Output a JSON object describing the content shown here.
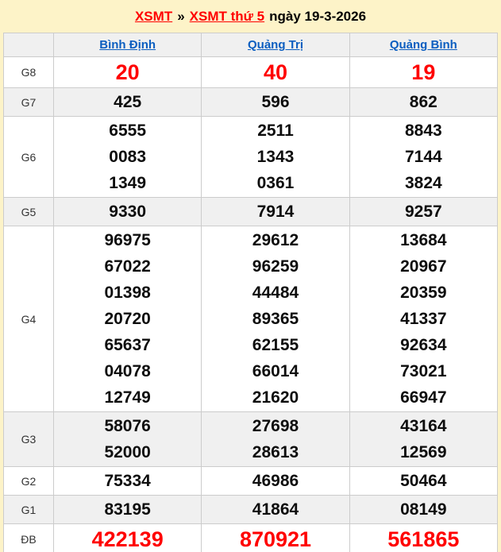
{
  "title": {
    "link1": "XSMT",
    "separator": "»",
    "link2": "XSMT thứ 5",
    "date_text": "ngày 19-3-2026"
  },
  "table": {
    "columns": [
      "Bình Định",
      "Quảng Trị",
      "Quảng Bình"
    ],
    "rows": [
      {
        "label": "G8",
        "highlight": true,
        "values": [
          [
            "20"
          ],
          [
            "40"
          ],
          [
            "19"
          ]
        ]
      },
      {
        "label": "G7",
        "highlight": false,
        "values": [
          [
            "425"
          ],
          [
            "596"
          ],
          [
            "862"
          ]
        ]
      },
      {
        "label": "G6",
        "highlight": false,
        "values": [
          [
            "6555",
            "0083",
            "1349"
          ],
          [
            "2511",
            "1343",
            "0361"
          ],
          [
            "8843",
            "7144",
            "3824"
          ]
        ]
      },
      {
        "label": "G5",
        "highlight": false,
        "values": [
          [
            "9330"
          ],
          [
            "7914"
          ],
          [
            "9257"
          ]
        ]
      },
      {
        "label": "G4",
        "highlight": false,
        "values": [
          [
            "96975",
            "67022",
            "01398",
            "20720",
            "65637",
            "04078",
            "12749"
          ],
          [
            "29612",
            "96259",
            "44484",
            "89365",
            "62155",
            "66014",
            "21620"
          ],
          [
            "13684",
            "20967",
            "20359",
            "41337",
            "92634",
            "73021",
            "66947"
          ]
        ]
      },
      {
        "label": "G3",
        "highlight": false,
        "values": [
          [
            "58076",
            "52000"
          ],
          [
            "27698",
            "28613"
          ],
          [
            "43164",
            "12569"
          ]
        ]
      },
      {
        "label": "G2",
        "highlight": false,
        "values": [
          [
            "75334"
          ],
          [
            "46986"
          ],
          [
            "50464"
          ]
        ]
      },
      {
        "label": "G1",
        "highlight": false,
        "values": [
          [
            "83195"
          ],
          [
            "41864"
          ],
          [
            "08149"
          ]
        ]
      },
      {
        "label": "ĐB",
        "highlight": true,
        "values": [
          [
            "422139"
          ],
          [
            "870921"
          ],
          [
            "561865"
          ]
        ]
      }
    ]
  },
  "colors": {
    "page_background": "#fdf3c8",
    "highlight_red": "#ff0000",
    "link_blue": "#0b5ec0",
    "alt_row_gray": "#f0f0f0"
  }
}
